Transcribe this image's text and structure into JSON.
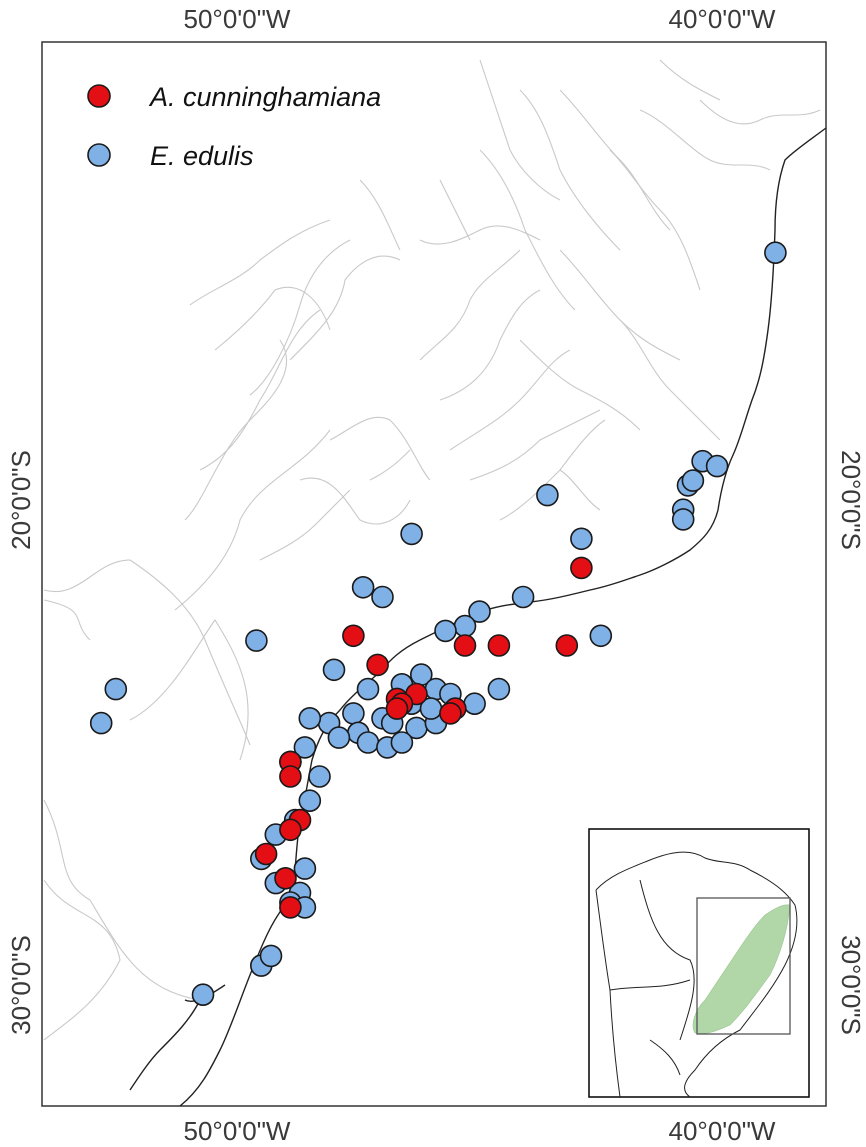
{
  "map": {
    "axes": {
      "top_ticks": [
        "50°0'0\"W",
        "40°0'0\"W"
      ],
      "bottom_ticks": [
        "50°0'0\"W",
        "40°0'0\"W"
      ],
      "left_ticks": [
        "20°0'0\"S",
        "30°0'0\"S"
      ],
      "right_ticks": [
        "20°0'0\"S",
        "30°0'0\"S"
      ],
      "lon_range": [
        -54,
        -38
      ],
      "lat_range": [
        -32.6,
        -9.2
      ]
    },
    "legend": [
      {
        "label": "A. cunninghamiana",
        "color": "#e30f14"
      },
      {
        "label": "E. edulis",
        "color": "#7fb0e6"
      }
    ],
    "inset": {
      "description_visible": false,
      "region_color": "#a9d3a0"
    }
  },
  "chart_data": {
    "type": "scatter",
    "title": "",
    "xlabel": "",
    "ylabel": "",
    "xlim": [
      -54,
      -38
    ],
    "ylim": [
      -32.6,
      -9.2
    ],
    "series": [
      {
        "name": "E. edulis",
        "color": "#7fb0e6",
        "points": [
          [
            -38.9,
            -14.9
          ],
          [
            -40.4,
            -19.2
          ],
          [
            -40.1,
            -19.3
          ],
          [
            -40.7,
            -19.7
          ],
          [
            -40.6,
            -19.6
          ],
          [
            -40.8,
            -20.2
          ],
          [
            -40.8,
            -20.4
          ],
          [
            -43.6,
            -19.9
          ],
          [
            -46.4,
            -20.7
          ],
          [
            -42.9,
            -20.8
          ],
          [
            -47.4,
            -21.8
          ],
          [
            -47.0,
            -22.0
          ],
          [
            -44.1,
            -22.0
          ],
          [
            -42.5,
            -22.8
          ],
          [
            -45.0,
            -22.3
          ],
          [
            -45.3,
            -22.6
          ],
          [
            -45.7,
            -22.7
          ],
          [
            -49.6,
            -22.9
          ],
          [
            -48.0,
            -23.5
          ],
          [
            -52.5,
            -23.9
          ],
          [
            -52.8,
            -24.6
          ],
          [
            -47.3,
            -23.9
          ],
          [
            -46.6,
            -23.8
          ],
          [
            -46.2,
            -23.6
          ],
          [
            -45.9,
            -23.9
          ],
          [
            -45.6,
            -24.0
          ],
          [
            -45.1,
            -24.2
          ],
          [
            -44.6,
            -23.9
          ],
          [
            -47.6,
            -24.4
          ],
          [
            -47.0,
            -24.5
          ],
          [
            -46.8,
            -24.6
          ],
          [
            -46.3,
            -24.7
          ],
          [
            -45.9,
            -24.6
          ],
          [
            -46.4,
            -24.2
          ],
          [
            -46.0,
            -24.3
          ],
          [
            -47.5,
            -24.8
          ],
          [
            -48.1,
            -24.6
          ],
          [
            -48.5,
            -24.5
          ],
          [
            -47.9,
            -24.9
          ],
          [
            -47.3,
            -25.0
          ],
          [
            -46.9,
            -25.1
          ],
          [
            -46.6,
            -25.0
          ],
          [
            -48.6,
            -25.1
          ],
          [
            -48.9,
            -25.4
          ],
          [
            -48.3,
            -25.7
          ],
          [
            -48.8,
            -26.6
          ],
          [
            -49.2,
            -26.9
          ],
          [
            -49.5,
            -27.4
          ],
          [
            -48.6,
            -27.6
          ],
          [
            -49.2,
            -27.9
          ],
          [
            -48.7,
            -28.1
          ],
          [
            -48.9,
            -28.3
          ],
          [
            -48.6,
            -28.4
          ],
          [
            -49.5,
            -29.6
          ],
          [
            -49.3,
            -29.4
          ],
          [
            -50.7,
            -30.2
          ],
          [
            -48.5,
            -26.2
          ]
        ]
      },
      {
        "name": "A. cunninghamiana",
        "color": "#e30f14",
        "points": [
          [
            -42.9,
            -21.4
          ],
          [
            -43.2,
            -23.0
          ],
          [
            -47.6,
            -22.8
          ],
          [
            -45.3,
            -23.0
          ],
          [
            -44.6,
            -23.0
          ],
          [
            -47.1,
            -23.4
          ],
          [
            -46.3,
            -24.0
          ],
          [
            -46.7,
            -24.1
          ],
          [
            -46.6,
            -24.2
          ],
          [
            -46.7,
            -24.3
          ],
          [
            -45.5,
            -24.3
          ],
          [
            -45.6,
            -24.4
          ],
          [
            -48.9,
            -25.4
          ],
          [
            -48.9,
            -25.7
          ],
          [
            -48.7,
            -26.6
          ],
          [
            -48.9,
            -26.8
          ],
          [
            -49.4,
            -27.3
          ],
          [
            -49.0,
            -27.8
          ],
          [
            -48.9,
            -28.4
          ]
        ]
      }
    ]
  }
}
